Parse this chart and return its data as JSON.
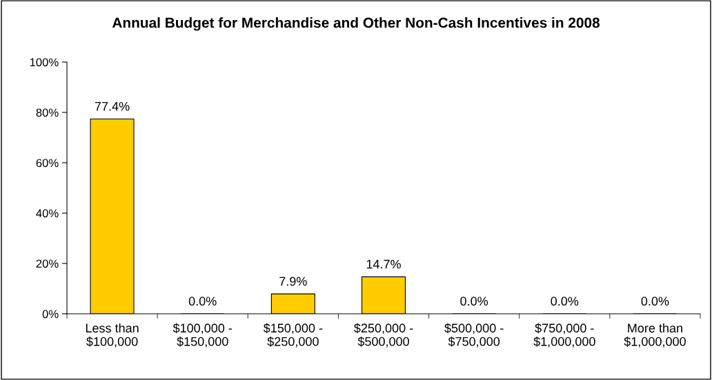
{
  "chart_data": {
    "type": "bar",
    "title": "Annual Budget for Merchandise and Other Non-Cash Incentives in 2008",
    "categories": [
      "Less than\n$100,000",
      "$100,000 -\n$150,000",
      "$150,000 -\n$250,000",
      "$250,000 -\n$500,000",
      "$500,000 -\n$750,000",
      "$750,000 -\n$1,000,000",
      "More than\n$1,000,000"
    ],
    "values": [
      77.4,
      0.0,
      7.9,
      14.7,
      0.0,
      0.0,
      0.0
    ],
    "value_labels": [
      "77.4%",
      "0.0%",
      "7.9%",
      "14.7%",
      "0.0%",
      "0.0%",
      "0.0%"
    ],
    "color": "#ffcc00",
    "ylim": [
      0,
      100
    ],
    "yticks": [
      {
        "value": 0,
        "label": "0%"
      },
      {
        "value": 20,
        "label": "20%"
      },
      {
        "value": 40,
        "label": "40%"
      },
      {
        "value": 60,
        "label": "60%"
      },
      {
        "value": 80,
        "label": "80%"
      },
      {
        "value": 100,
        "label": "100%"
      }
    ],
    "grid": false,
    "legend": false
  }
}
